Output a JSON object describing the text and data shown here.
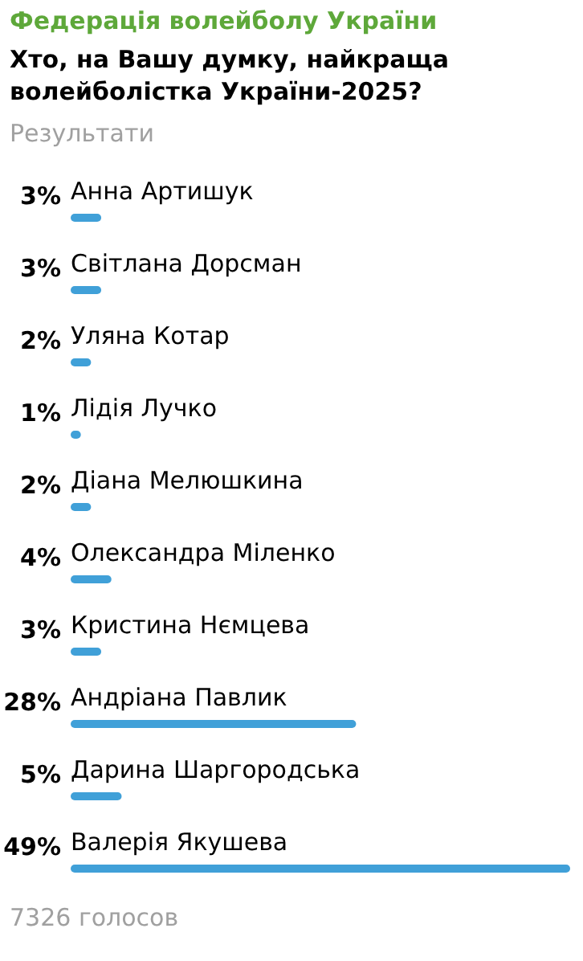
{
  "chart_data": {
    "type": "bar",
    "orientation": "horizontal",
    "title": "Хто, на Вашу думку, найкраща волейболістка України-2025?",
    "subtitle": "Результати",
    "annotations": [
      "Федерація волейболу України",
      "7326 голосов"
    ],
    "categories": [
      "Анна Артишук",
      "Світлана Дорсман",
      "Уляна Котар",
      "Лідія Лучко",
      "Діана Мелюшкина",
      "Олександра Міленко",
      "Кристина Нємцева",
      "Андріана Павлик",
      "Дарина Шаргородська",
      "Валерія Якушева"
    ],
    "values": [
      3,
      3,
      2,
      1,
      2,
      4,
      3,
      28,
      5,
      49
    ],
    "value_labels": [
      "3%",
      "3%",
      "2%",
      "1%",
      "2%",
      "4%",
      "3%",
      "28%",
      "5%",
      "49%"
    ],
    "color": "#40a0d8"
  }
}
